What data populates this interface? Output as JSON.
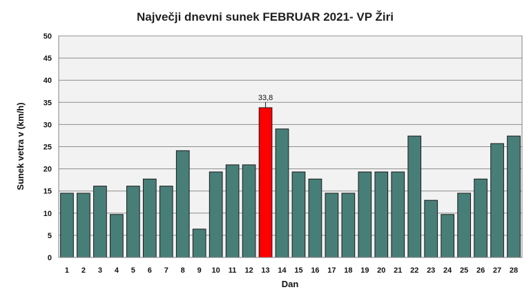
{
  "colors": {
    "bar": "#487E78",
    "highlight": "#FF0000",
    "plot_background": "#F2F2F2",
    "grid": "#8C8C8C"
  },
  "chart_data": {
    "type": "bar",
    "title": "Največji dnevni sunek FEBRUAR 2021- VP Žiri",
    "xlabel": "Dan",
    "ylabel": "Sunek vetra  v (km/h)",
    "ylim": [
      0,
      50
    ],
    "yticks": [
      0,
      5,
      10,
      15,
      20,
      25,
      30,
      35,
      40,
      45,
      50
    ],
    "grid": true,
    "legend": "none",
    "categories": [
      "1",
      "2",
      "3",
      "4",
      "5",
      "6",
      "7",
      "8",
      "9",
      "10",
      "11",
      "12",
      "13",
      "14",
      "15",
      "16",
      "17",
      "18",
      "19",
      "20",
      "21",
      "22",
      "23",
      "24",
      "25",
      "26",
      "27",
      "28"
    ],
    "values": [
      14.5,
      14.5,
      16.1,
      9.7,
      16.1,
      17.7,
      16.1,
      24.1,
      6.4,
      19.3,
      20.9,
      20.9,
      33.8,
      29.0,
      19.3,
      17.7,
      14.5,
      14.5,
      19.3,
      19.3,
      19.3,
      27.4,
      12.9,
      9.7,
      14.5,
      17.7,
      25.7,
      27.4
    ],
    "highlight_index": 12,
    "annotations": [
      {
        "category": "13",
        "text": "33,8"
      }
    ]
  }
}
